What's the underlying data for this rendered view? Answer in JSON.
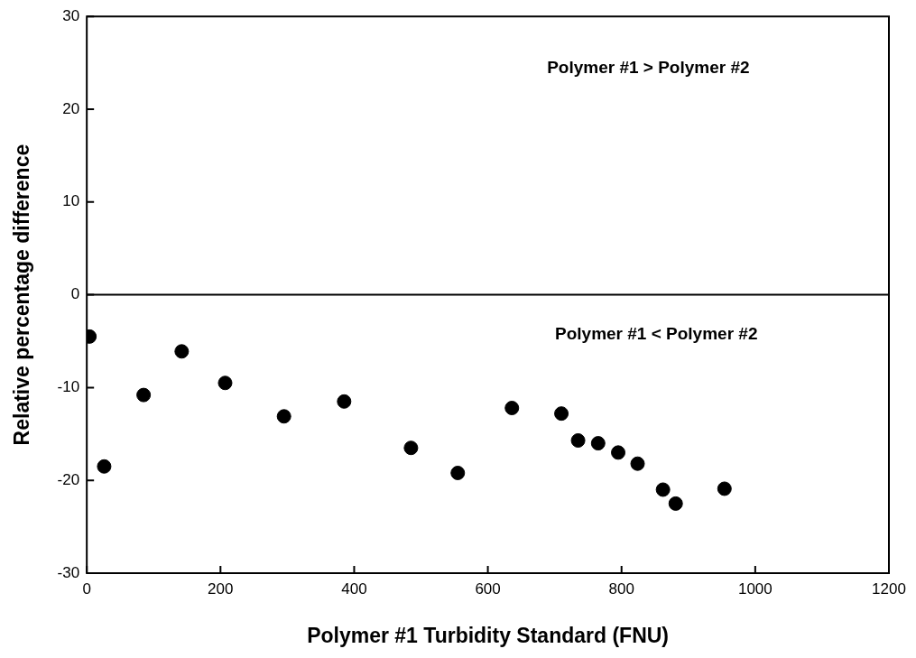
{
  "chart_data": {
    "type": "scatter",
    "xlabel": "Polymer #1 Turbidity Standard (FNU)",
    "ylabel": "Relative percentage difference",
    "annotations": [
      "Polymer #1 > Polymer #2",
      "Polymer #1 < Polymer #2"
    ],
    "series": [
      {
        "color": "#000000",
        "x": [
          4,
          26,
          85,
          142,
          207,
          295,
          385,
          485,
          555,
          636,
          710,
          735,
          765,
          795,
          824,
          862,
          881,
          954
        ],
        "values": [
          -4.5,
          -18.5,
          -10.8,
          -6.1,
          -9.5,
          -13.1,
          -11.5,
          -16.5,
          -19.2,
          -12.2,
          -12.8,
          -15.7,
          -16.0,
          -17.0,
          -18.2,
          -21.0,
          -22.5,
          -20.9
        ]
      }
    ],
    "xlim": [
      0,
      1200
    ],
    "xticks": [
      0,
      200,
      400,
      600,
      800,
      1000,
      1200
    ],
    "ylim": [
      -30,
      30
    ],
    "yticks": [
      -30,
      -20,
      -10,
      0,
      10,
      20,
      30
    ],
    "ref_lines": [
      {
        "axis": "y",
        "value": 0,
        "color": "#000000"
      }
    ],
    "marker": "circle",
    "grid": false,
    "legend": false
  }
}
